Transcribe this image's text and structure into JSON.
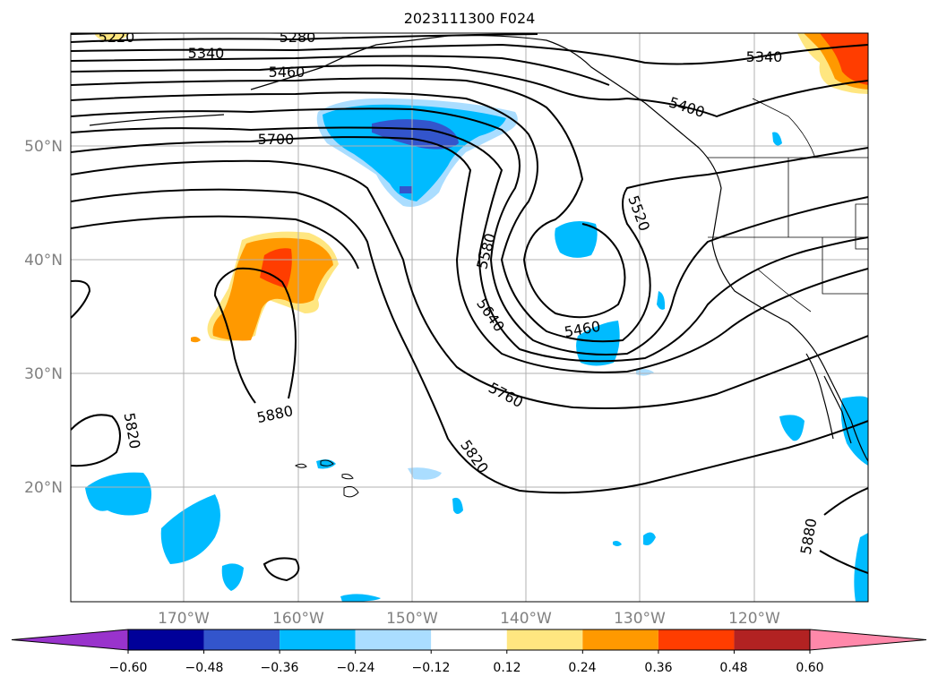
{
  "title": "2023111300 F024",
  "lat_labels": [
    "50°N",
    "40°N",
    "30°N",
    "20°N"
  ],
  "lon_labels": [
    "170°W",
    "160°W",
    "150°W",
    "140°W",
    "130°W",
    "120°W"
  ],
  "contour_labels": [
    "5220",
    "5280",
    "5340",
    "5460",
    "5700",
    "5340",
    "5400",
    "5520",
    "5580",
    "5640",
    "5460",
    "5760",
    "5820",
    "5880",
    "5820",
    "5880"
  ],
  "colorbar": {
    "ticks": [
      "−0.60",
      "−0.48",
      "−0.36",
      "−0.24",
      "−0.12",
      "0.12",
      "0.24",
      "0.36",
      "0.48",
      "0.60"
    ],
    "colors": [
      "#9933cc",
      "#000099",
      "#3355cc",
      "#00bbff",
      "#aaddff",
      "#ffffff",
      "#ffe680",
      "#ff9900",
      "#ff3d00",
      "#b22222",
      "#ff88aa"
    ]
  },
  "map": {
    "ocean": "#ffffff",
    "contour_color": "#000000",
    "grid_color": "#b0b0b0"
  }
}
